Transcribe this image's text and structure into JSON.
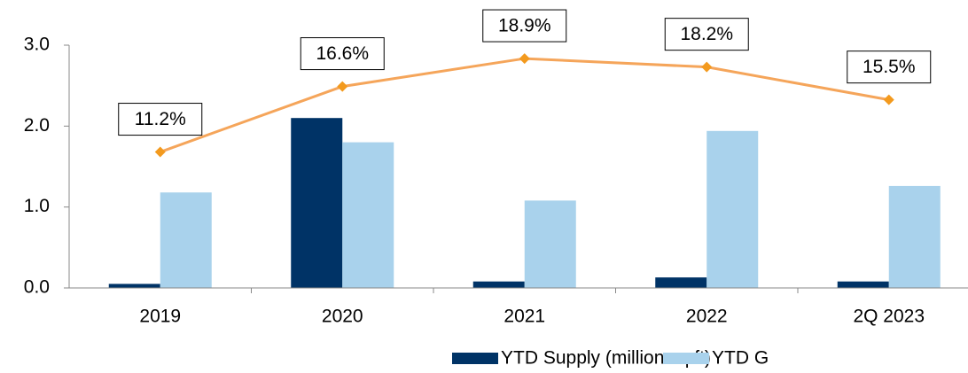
{
  "chart_data": {
    "type": "bar",
    "categories": [
      "2019",
      "2020",
      "2021",
      "2022",
      "2Q 2023"
    ],
    "series": [
      {
        "name": "YTD Supply (million sq ft)",
        "color": "#003366",
        "values": [
          0.05,
          2.1,
          0.08,
          0.13,
          0.08
        ]
      },
      {
        "name": "YTD G",
        "color": "#a9d2ec",
        "values": [
          1.18,
          1.8,
          1.08,
          1.94,
          1.26
        ]
      },
      {
        "type": "line",
        "axis": "y2",
        "color": "#f5a55a",
        "marker_color": "#f39a1e",
        "values": [
          11.2,
          16.6,
          18.9,
          18.2,
          15.5
        ],
        "value_labels": [
          "11.2%",
          "16.6%",
          "18.9%",
          "18.2%",
          "15.5%"
        ]
      }
    ],
    "ylim": [
      0,
      3
    ],
    "yticks": [
      {
        "value": 0,
        "label": "0.0"
      },
      {
        "value": 1,
        "label": "1.0"
      },
      {
        "value": 2,
        "label": "2.0"
      },
      {
        "value": 3,
        "label": "3.0"
      }
    ],
    "y2lim": [
      0,
      20
    ]
  }
}
